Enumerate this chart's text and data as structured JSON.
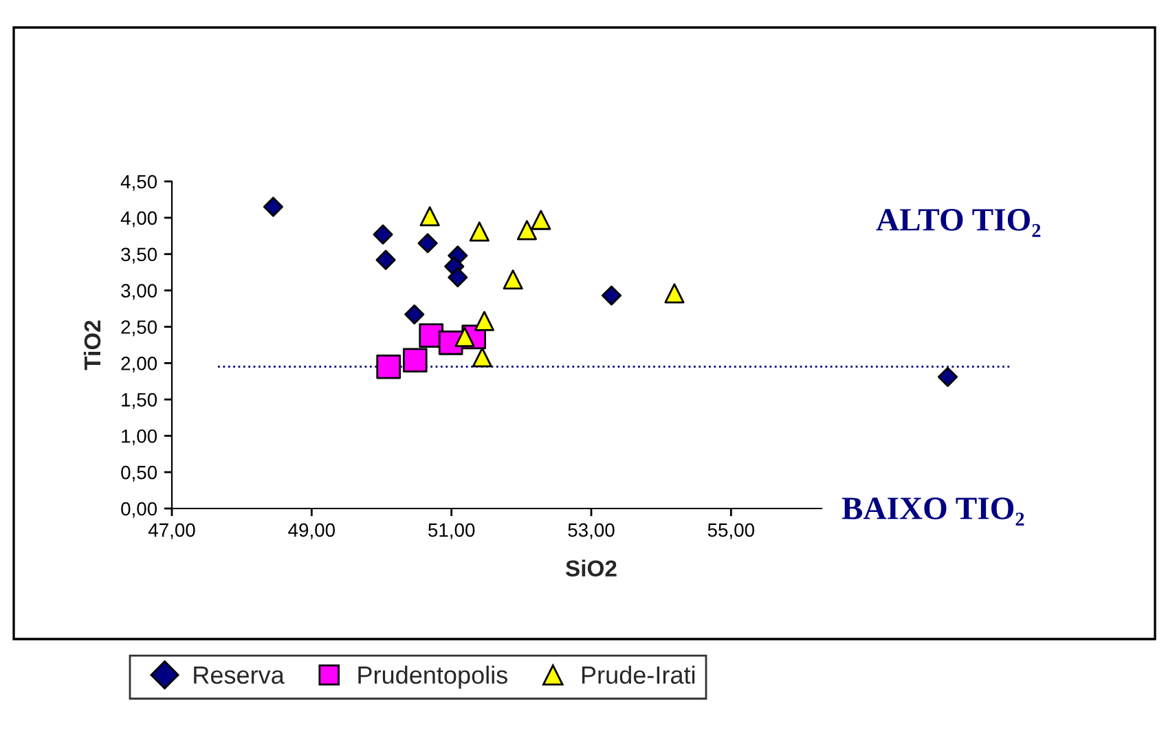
{
  "chart_data": {
    "type": "scatter",
    "xlabel": "SiO2",
    "ylabel": "TiO2",
    "xlim": [
      47,
      59
    ],
    "ylim": [
      0,
      4.5
    ],
    "xticks": [
      {
        "value": 47,
        "label": "47,00"
      },
      {
        "value": 49,
        "label": "49,00"
      },
      {
        "value": 51,
        "label": "51,00"
      },
      {
        "value": 53,
        "label": "53,00"
      },
      {
        "value": 55,
        "label": "55,00"
      },
      {
        "value": 57,
        "label": null
      },
      {
        "value": 59,
        "label": null
      }
    ],
    "yticks": [
      {
        "value": 0,
        "label": "0,00"
      },
      {
        "value": 0.5,
        "label": "0,50"
      },
      {
        "value": 1,
        "label": "1,00"
      },
      {
        "value": 1.5,
        "label": "1,50"
      },
      {
        "value": 2,
        "label": "2,00"
      },
      {
        "value": 2.5,
        "label": "2,50"
      },
      {
        "value": 3,
        "label": "3,00"
      },
      {
        "value": 3.5,
        "label": "3,50"
      },
      {
        "value": 4,
        "label": "4,00"
      },
      {
        "value": 4.5,
        "label": "4,50"
      }
    ],
    "grid": false,
    "legend": "bottom",
    "ref_lines": [
      {
        "axis": "y",
        "value": 1.95,
        "color": "#000080",
        "line_style": "dotted"
      }
    ],
    "annotations": [
      "ALTO TIO₂",
      "BAIXO TIO₂"
    ],
    "series": [
      {
        "name": "Reserva",
        "color": "#000080",
        "marker": "diamond",
        "x": [
          48.45,
          50.02,
          50.06,
          50.66,
          51.09,
          51.04,
          51.09,
          50.47,
          53.29,
          58.1
        ],
        "values": [
          4.15,
          3.77,
          3.42,
          3.65,
          3.48,
          3.33,
          3.18,
          2.67,
          2.93,
          1.81
        ]
      },
      {
        "name": "Prudentopolis",
        "color": "#ff00ff",
        "marker": "square",
        "x": [
          50.1,
          50.48,
          50.71,
          50.99,
          51.32
        ],
        "values": [
          1.95,
          2.04,
          2.38,
          2.28,
          2.36
        ]
      },
      {
        "name": "Prude-Irati",
        "color": "#ffff00",
        "marker": "triangle",
        "x": [
          50.69,
          51.4,
          52.08,
          52.28,
          51.88,
          54.19,
          51.47,
          51.19,
          51.44
        ],
        "values": [
          4.02,
          3.81,
          3.83,
          3.97,
          3.15,
          2.96,
          2.58,
          2.36,
          2.08
        ]
      }
    ]
  }
}
